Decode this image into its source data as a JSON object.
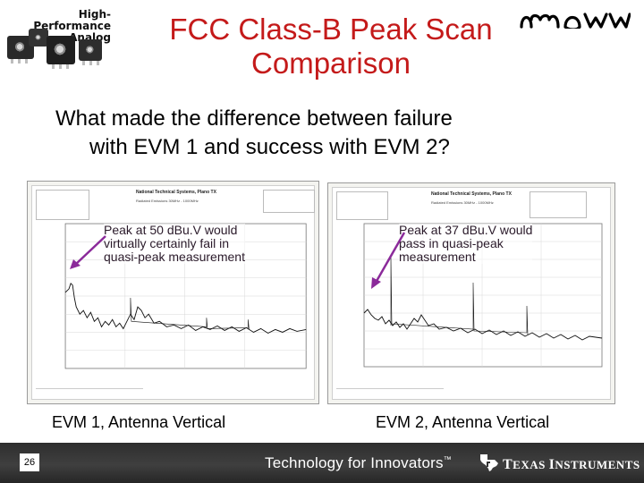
{
  "header": {
    "logo_line1": "High-Performance",
    "logo_line2": "Analog",
    "title_line1": "FCC Class-B Peak Scan",
    "title_line2": "Comparison",
    "brand_logo": "arrow-logo"
  },
  "question": {
    "line1": "What made the difference between failure",
    "line2": "with EVM 1 and success with EVM 2?"
  },
  "panels": [
    {
      "id": "evm1",
      "company": "National Technical Systems, Plano TX",
      "subtitle": "Radiated Emissions 30MHz - 1000MHz",
      "callout_lines": [
        "Peak at 50 dBu.V would",
        "virtually certainly fail in",
        "quasi-peak measurement"
      ],
      "caption": "EVM 1, Antenna Vertical"
    },
    {
      "id": "evm2",
      "company": "National Technical Systems, Plano TX",
      "subtitle": "Radiated Emissions 30MHz - 1000MHz",
      "callout_lines": [
        "Peak at 37 dBu.V would",
        "pass in quasi-peak",
        "measurement"
      ],
      "caption": "EVM 2, Antenna Vertical"
    }
  ],
  "footer": {
    "page_number": "26",
    "tagline": "Technology for Innovators",
    "tagline_mark": "™",
    "ti_name_t": "T",
    "ti_name_rest1": "EXAS ",
    "ti_name_i": "I",
    "ti_name_rest2": "NSTRUMENTS"
  },
  "colors": {
    "title": "#c41a1a",
    "callout_arrow": "#8b2a9a",
    "footer_bg": "#333333"
  }
}
